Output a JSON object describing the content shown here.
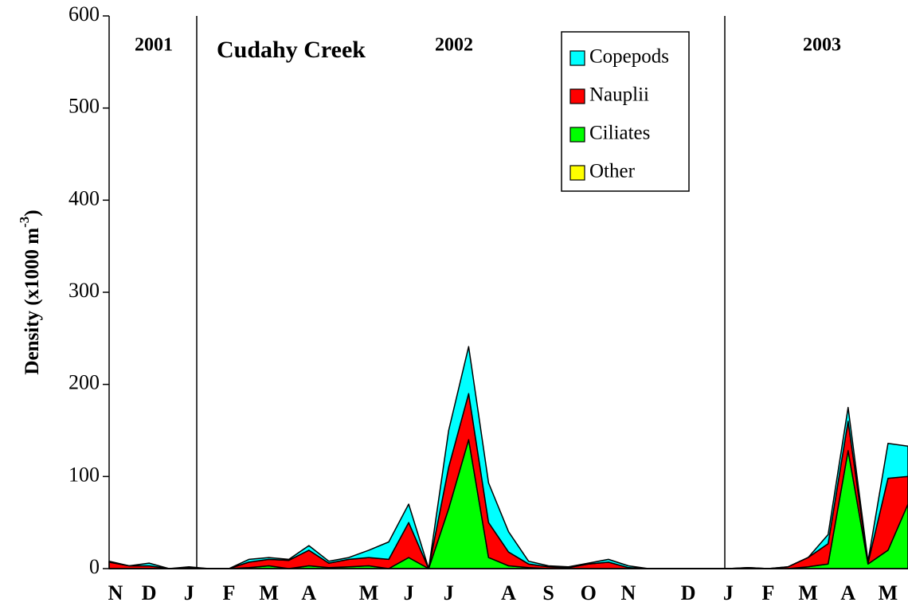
{
  "chart_data": {
    "type": "stacked-area",
    "title": "Cudahy Creek",
    "annotations": [
      "2001",
      "2002",
      "2003"
    ],
    "ylabel": {
      "text": "Density (x1000 m",
      "superscript": "-3",
      "suffix": ")"
    },
    "categories": [
      "N",
      null,
      "D",
      null,
      "J",
      null,
      "F",
      null,
      "M",
      null,
      "A",
      null,
      null,
      "M",
      null,
      "J",
      null,
      "J",
      null,
      null,
      "A",
      null,
      "S",
      null,
      "O",
      null,
      "N",
      null,
      null,
      "D",
      null,
      "J",
      null,
      "F",
      null,
      "M",
      null,
      "A",
      null,
      "M",
      null
    ],
    "series": [
      {
        "name": "Other",
        "color": "#ffff00",
        "values": [
          0,
          0,
          0,
          0,
          0,
          0,
          0,
          0,
          0,
          0,
          0,
          0,
          0,
          0,
          0,
          0,
          0,
          0,
          0,
          0,
          0,
          0,
          0,
          0,
          0,
          0,
          0,
          0,
          0,
          0,
          0,
          0,
          0,
          0,
          0,
          0,
          0,
          0,
          0,
          0,
          0
        ]
      },
      {
        "name": "Ciliates",
        "color": "#00ff00",
        "values": [
          0,
          0,
          0,
          0,
          0,
          0,
          0,
          1,
          3,
          0,
          3,
          1,
          2,
          3,
          0,
          12,
          0,
          65,
          140,
          12,
          3,
          1,
          0,
          0,
          0,
          0,
          0,
          0,
          0,
          0,
          0,
          0,
          0,
          0,
          0,
          2,
          5,
          128,
          5,
          20,
          70
        ]
      },
      {
        "name": "Nauplii",
        "color": "#ff0000",
        "values": [
          7,
          3,
          3,
          0,
          1,
          0,
          0,
          6,
          7,
          9,
          17,
          5,
          8,
          9,
          10,
          38,
          0,
          45,
          50,
          38,
          15,
          4,
          2,
          1,
          5,
          7,
          1,
          0,
          0,
          0,
          0,
          0,
          1,
          0,
          2,
          10,
          22,
          32,
          1,
          78,
          30
        ]
      },
      {
        "name": "Copepods",
        "color": "#00ffff",
        "values": [
          1,
          0,
          3,
          0,
          1,
          0,
          0,
          3,
          2,
          1,
          5,
          2,
          2,
          8,
          19,
          20,
          0,
          40,
          51,
          43,
          22,
          3,
          1,
          1,
          1,
          3,
          2,
          0,
          0,
          0,
          0,
          0,
          0,
          0,
          0,
          0,
          10,
          15,
          2,
          38,
          33
        ]
      }
    ],
    "ylim": [
      0,
      600
    ],
    "yticks": [
      0,
      100,
      200,
      300,
      400,
      500,
      600
    ],
    "grid": false
  }
}
